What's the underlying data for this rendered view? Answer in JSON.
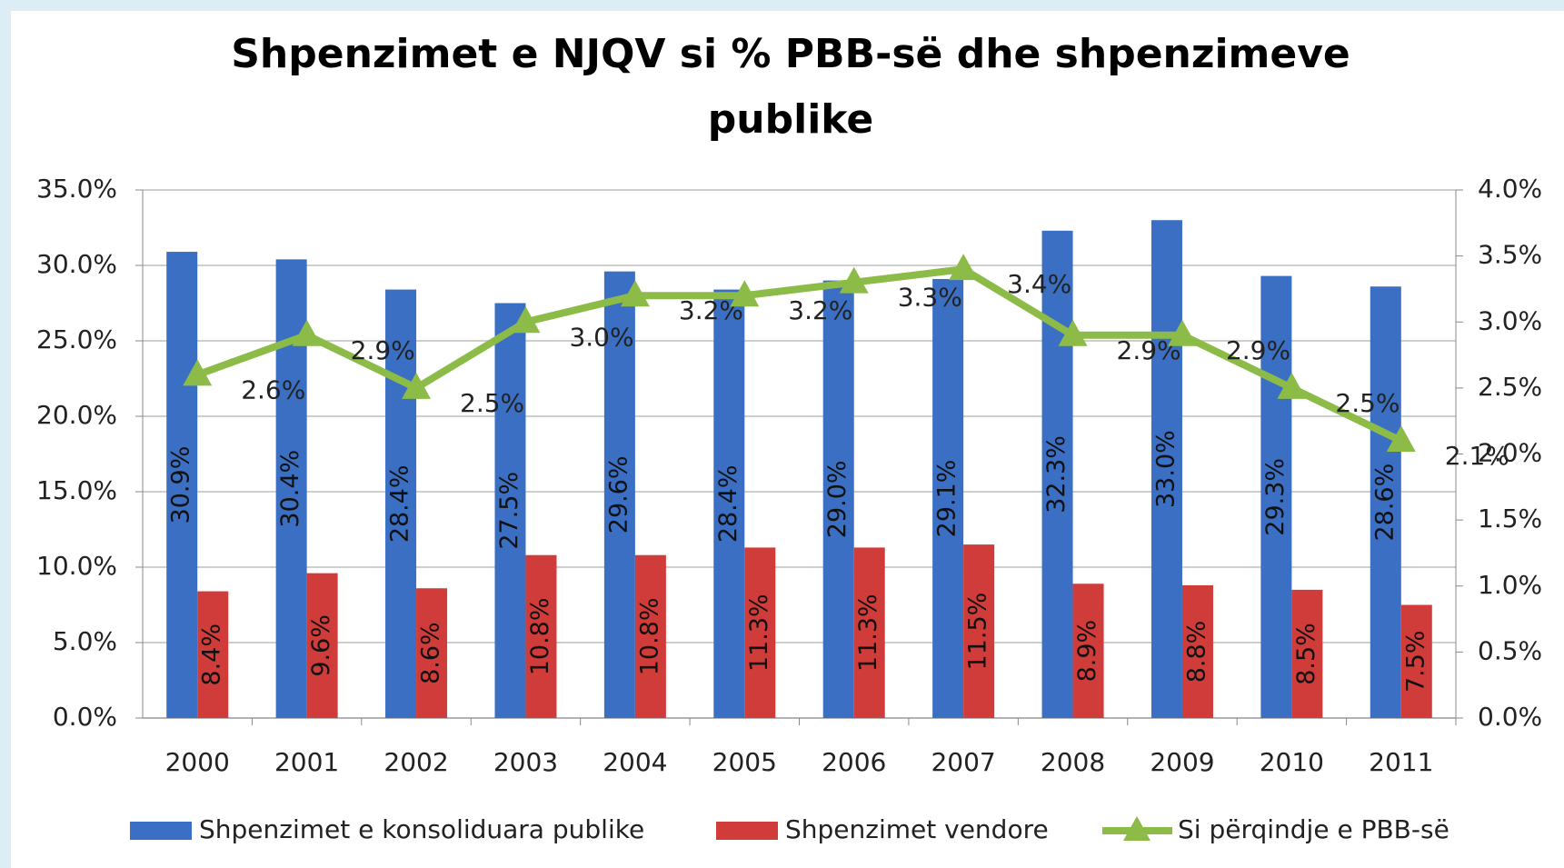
{
  "chart_data": {
    "type": "bar",
    "title": "Shpenzimet e NJQV si % PBB-së dhe shpenzimeve publike",
    "categories": [
      "2000",
      "2001",
      "2002",
      "2003",
      "2004",
      "2005",
      "2006",
      "2007",
      "2008",
      "2009",
      "2010",
      "2011"
    ],
    "series": [
      {
        "name": "Shpenzimet e konsoliduara publike",
        "color": "#3a6fc4",
        "values": [
          30.9,
          30.4,
          28.4,
          27.5,
          29.6,
          28.4,
          29.0,
          29.1,
          32.3,
          33.0,
          29.3,
          28.6
        ],
        "value_labels": [
          "30.9%",
          "30.4%",
          "28.4%",
          "27.5%",
          "29.6%",
          "28.4%",
          "29.0%",
          "29.1%",
          "32.3%",
          "33.0%",
          "29.3%",
          "28.6%"
        ]
      },
      {
        "name": "Shpenzimet vendore",
        "color": "#d03c3a",
        "values": [
          8.4,
          9.6,
          8.6,
          10.8,
          10.8,
          11.3,
          11.3,
          11.5,
          8.9,
          8.8,
          8.5,
          7.5
        ],
        "value_labels": [
          "8.4%",
          "9.6%",
          "8.6%",
          "10.8%",
          "10.8%",
          "11.3%",
          "11.3%",
          "11.5%",
          "8.9%",
          "8.8%",
          "8.5%",
          "7.5%"
        ]
      },
      {
        "name": "Si përqindje e PBB-së",
        "color": "#8dbb48",
        "type": "line",
        "axis": "y2",
        "values": [
          2.6,
          2.9,
          2.5,
          3.0,
          3.2,
          3.2,
          3.3,
          3.4,
          2.9,
          2.9,
          2.5,
          2.1
        ],
        "value_labels": [
          "2.6%",
          "2.9%",
          "2.5%",
          "3.0%",
          "3.2%",
          "3.2%",
          "3.3%",
          "3.4%",
          "2.9%",
          "2.9%",
          "2.5%",
          "2.1%"
        ]
      }
    ],
    "ylim": [
      0,
      35
    ],
    "yticks": [
      {
        "value": 0,
        "label": "0.0%"
      },
      {
        "value": 5,
        "label": "5.0%"
      },
      {
        "value": 10,
        "label": "10.0%"
      },
      {
        "value": 15,
        "label": "15.0%"
      },
      {
        "value": 20,
        "label": "20.0%"
      },
      {
        "value": 25,
        "label": "25.0%"
      },
      {
        "value": 30,
        "label": "30.0%"
      },
      {
        "value": 35,
        "label": "35.0%"
      }
    ],
    "y2lim": [
      0,
      4
    ],
    "y2ticks": [
      {
        "value": 0,
        "label": "0.0%"
      },
      {
        "value": 0.5,
        "label": "0.5%"
      },
      {
        "value": 1,
        "label": "1.0%"
      },
      {
        "value": 1.5,
        "label": "1.5%"
      },
      {
        "value": 2,
        "label": "2.0%"
      },
      {
        "value": 2.5,
        "label": "2.5%"
      },
      {
        "value": 3,
        "label": "3.0%"
      },
      {
        "value": 3.5,
        "label": "3.5%"
      },
      {
        "value": 4,
        "label": "4.0%"
      }
    ],
    "grid": true,
    "legend": "bottom"
  }
}
